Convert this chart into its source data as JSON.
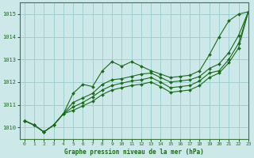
{
  "title": "Graphe pression niveau de la mer (hPa)",
  "background_color": "#cce8e8",
  "grid_color": "#99cccc",
  "line_color": "#1a6b1a",
  "xlim": [
    -0.5,
    23
  ],
  "ylim": [
    1009.5,
    1015.5
  ],
  "yticks": [
    1010,
    1011,
    1012,
    1013,
    1014,
    1015
  ],
  "xticks": [
    0,
    1,
    2,
    3,
    4,
    5,
    6,
    7,
    8,
    9,
    10,
    11,
    12,
    13,
    14,
    15,
    16,
    17,
    18,
    19,
    20,
    21,
    22,
    23
  ],
  "series": [
    [
      1010.3,
      1010.1,
      1009.8,
      1010.1,
      1010.6,
      1011.5,
      1011.9,
      1011.8,
      1012.5,
      1012.9,
      1012.7,
      1012.9,
      1012.7,
      1012.5,
      1012.35,
      1012.2,
      1012.25,
      1012.3,
      1012.5,
      1013.2,
      1014.0,
      1014.7,
      1015.0,
      1015.1
    ],
    [
      1010.3,
      1010.1,
      1009.8,
      1010.1,
      1010.6,
      1011.1,
      1011.3,
      1011.5,
      1011.9,
      1012.1,
      1012.15,
      1012.25,
      1012.35,
      1012.4,
      1012.2,
      1012.0,
      1012.05,
      1012.1,
      1012.25,
      1012.6,
      1012.8,
      1013.3,
      1014.05,
      1015.1
    ],
    [
      1010.3,
      1010.1,
      1009.8,
      1010.1,
      1010.6,
      1010.9,
      1011.1,
      1011.35,
      1011.65,
      1011.85,
      1011.95,
      1012.05,
      1012.1,
      1012.2,
      1012.0,
      1011.75,
      1011.8,
      1011.85,
      1012.05,
      1012.4,
      1012.5,
      1013.0,
      1013.7,
      1015.1
    ],
    [
      1010.3,
      1010.1,
      1009.8,
      1010.1,
      1010.6,
      1010.75,
      1010.95,
      1011.15,
      1011.45,
      1011.65,
      1011.75,
      1011.85,
      1011.9,
      1012.0,
      1011.8,
      1011.55,
      1011.6,
      1011.65,
      1011.85,
      1012.2,
      1012.4,
      1012.85,
      1013.5,
      1015.1
    ]
  ]
}
